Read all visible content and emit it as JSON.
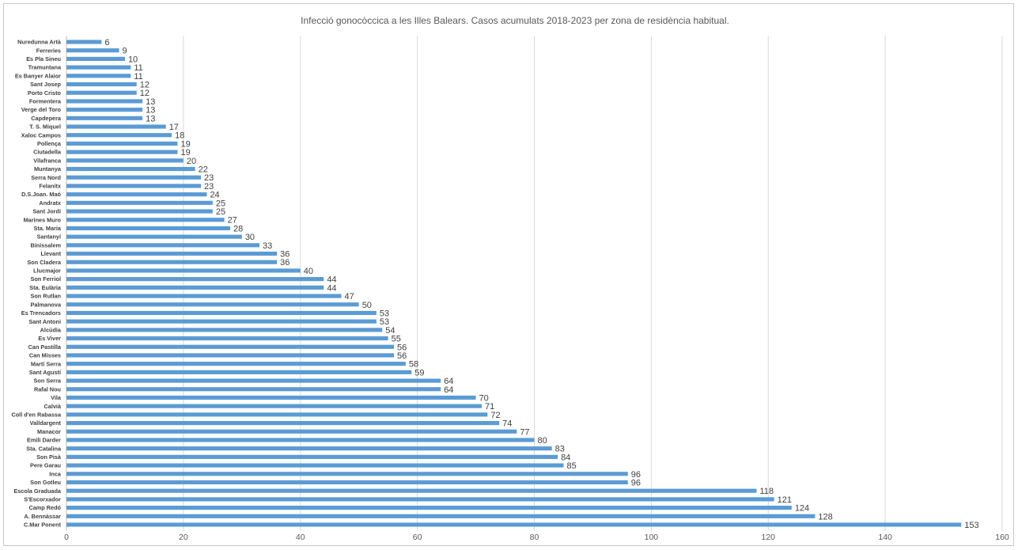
{
  "chart_data": {
    "type": "bar",
    "orientation": "horizontal",
    "title": "Infecció gonocòccica a les Illes Balears. Casos acumulats 2018-2023 per zona de residència habitual.",
    "xlim": [
      0,
      160
    ],
    "x_ticks": [
      0,
      20,
      40,
      60,
      80,
      100,
      120,
      140,
      160
    ],
    "grid": true,
    "bar_color": "#5b9bd5",
    "categories": [
      "Nuredunna Artà",
      "Ferreries",
      "Es Pla Sineu",
      "Tramuntana",
      "Es Banyer Alaior",
      "Sant Josep",
      "Porto Cristo",
      "Formentera",
      "Verge del Toro",
      "Capdepera",
      "T. S. Miquel",
      "Xaloc Campos",
      "Pollença",
      "Ciutadella",
      "Vilafranca",
      "Muntanya",
      "Serra Nord",
      "Felanitx",
      "D.S.Joan. Maó",
      "Andratx",
      "Sant Jordi",
      "Marines Muro",
      "Sta. Maria",
      "Santanyí",
      "Binissalem",
      "Llevant",
      "Son Cladera",
      "Llucmajor",
      "Son Ferriol",
      "Sta. Eulària",
      "Son Rutlan",
      "Palmanova",
      "Es Trencadors",
      "Sant Antoni",
      "Alcúdia",
      "Es Viver",
      "Can Pastilla",
      "Can Misses",
      "Martí Serra",
      "Sant Agustí",
      "Son Serra",
      "Rafal Nou",
      "Vila",
      "Calvià",
      "Coll d'en Rabassa",
      "Valldargent",
      "Manacor",
      "Emili Darder",
      "Sta. Catalina",
      "Son Pisà",
      "Pere Garau",
      "Inca",
      "Son Gotleu",
      "Escola Graduada",
      "S'Escorxador",
      "Camp Redó",
      "A. Bennàssar",
      "C.Mar Ponent"
    ],
    "values": [
      6,
      9,
      10,
      11,
      11,
      12,
      12,
      13,
      13,
      13,
      17,
      18,
      19,
      19,
      20,
      22,
      23,
      23,
      24,
      25,
      25,
      27,
      28,
      30,
      33,
      36,
      36,
      40,
      44,
      44,
      47,
      50,
      53,
      53,
      54,
      55,
      56,
      56,
      58,
      59,
      64,
      64,
      70,
      71,
      72,
      74,
      77,
      80,
      83,
      84,
      85,
      96,
      96,
      118,
      121,
      124,
      128,
      153
    ]
  }
}
